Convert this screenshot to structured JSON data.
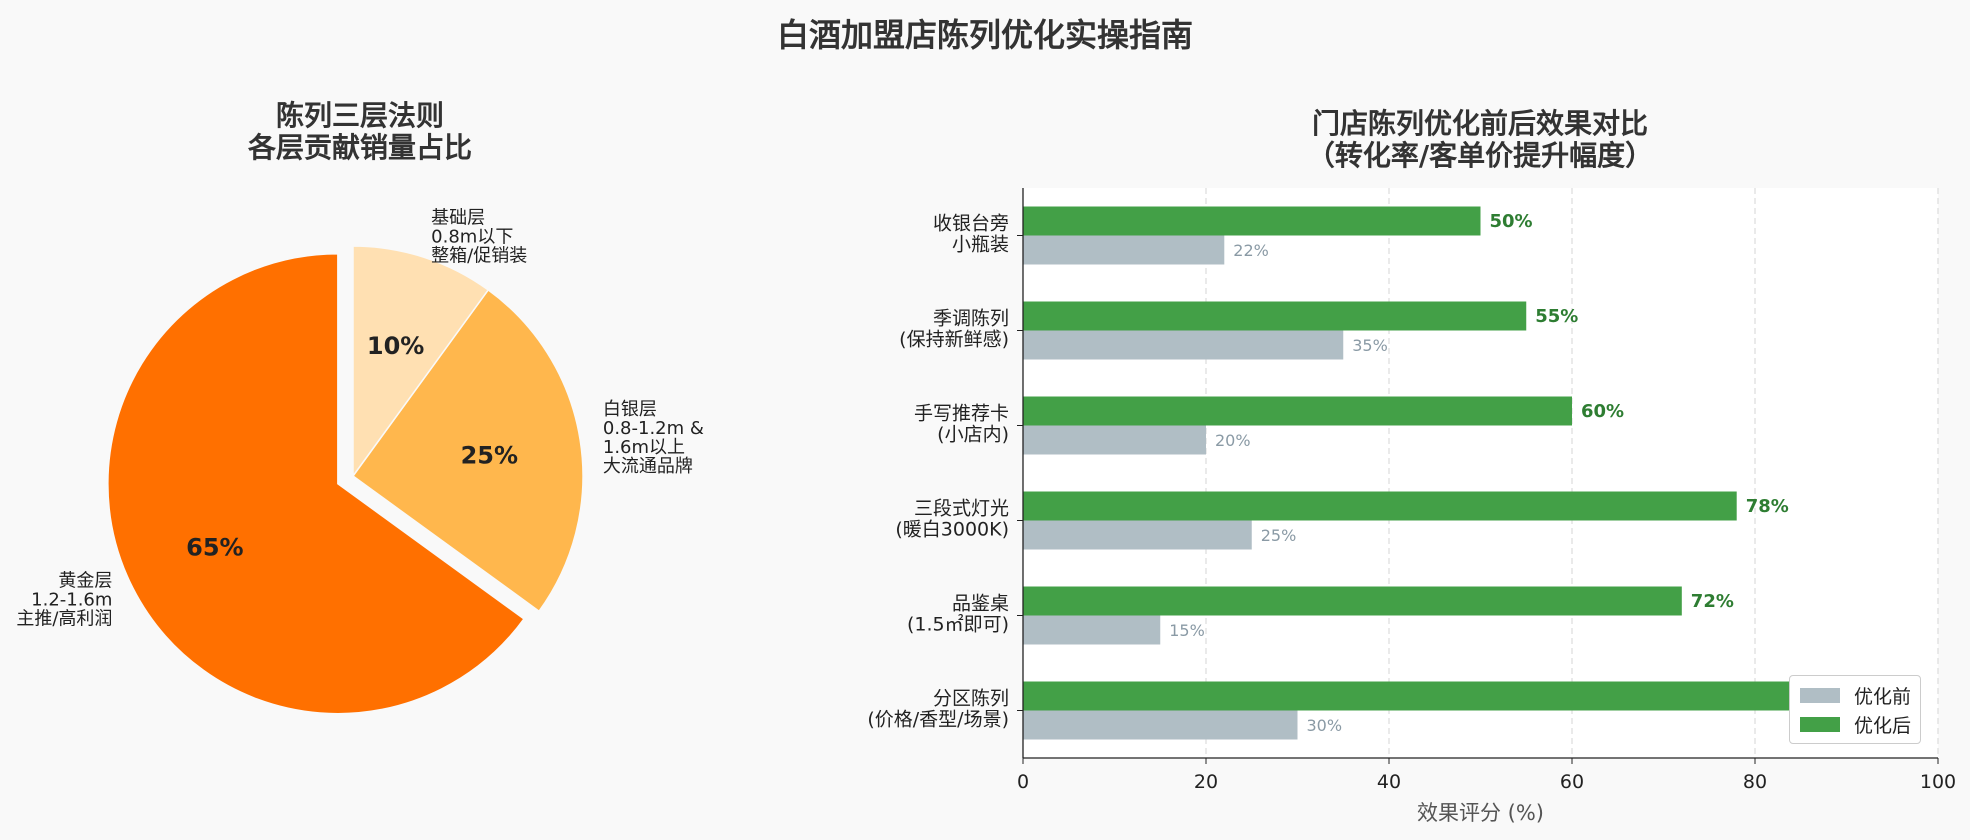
{
  "title": "白酒加盟店陈列优化实操指南",
  "colors": {
    "gold": "#ff7000",
    "silver": "#ffb74d",
    "base": "#ffe0b2",
    "before": "#b0bec5",
    "after": "#43a047",
    "after_label": "#2e7d32",
    "before_label": "#8a9aa5"
  },
  "chart_data": [
    {
      "type": "pie",
      "title": [
        "陈列三层法则",
        "各层贡献销量占比"
      ],
      "slices": [
        {
          "label": [
            "黄金层",
            "1.2-1.6m",
            "主推/高利润"
          ],
          "value": 65,
          "pct_label": "65%",
          "color": "#ff7000",
          "exploded": true
        },
        {
          "label": [
            "白银层",
            "0.8-1.2m &",
            "1.6m以上",
            "大流通品牌"
          ],
          "value": 25,
          "pct_label": "25%",
          "color": "#ffb74d",
          "exploded": false
        },
        {
          "label": [
            "基础层",
            "0.8m以下",
            "整箱/促销装"
          ],
          "value": 10,
          "pct_label": "10%",
          "color": "#ffe0b2",
          "exploded": false
        }
      ],
      "start_angle_deg": 90,
      "direction": "counterclockwise"
    },
    {
      "type": "bar",
      "orientation": "horizontal",
      "title": [
        "门店陈列优化前后效果对比",
        "（转化率/客单价提升幅度）"
      ],
      "xlabel": "效果评分 (%)",
      "xlim": [
        0,
        100
      ],
      "xticks": [
        0,
        20,
        40,
        60,
        80,
        100
      ],
      "grid": "x-dashed",
      "legend_position": "bottom-right",
      "categories": [
        [
          "收银台旁",
          "小瓶装"
        ],
        [
          "季调陈列",
          "(保持新鲜感)"
        ],
        [
          "手写推荐卡",
          "(小店内)"
        ],
        [
          "三段式灯光",
          "(暖白3000K)"
        ],
        [
          "品鉴桌",
          "(1.5㎡即可)"
        ],
        [
          "分区陈列",
          "(价格/香型/场景)"
        ]
      ],
      "series": [
        {
          "name": "优化前",
          "values": [
            22,
            35,
            20,
            25,
            15,
            30
          ],
          "labels": [
            "22%",
            "35%",
            "20%",
            "25%",
            "15%",
            "30%"
          ]
        },
        {
          "name": "优化后",
          "values": [
            50,
            55,
            60,
            78,
            72,
            85
          ],
          "labels": [
            "50%",
            "55%",
            "60%",
            "78%",
            "72%",
            "85%"
          ]
        }
      ]
    }
  ]
}
